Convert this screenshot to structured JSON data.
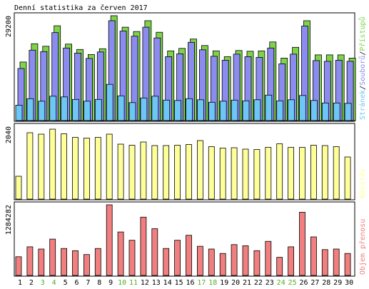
{
  "title": "Denní statistika za červen 2017",
  "colors": {
    "background": "#ffffff",
    "frame": "#000000",
    "pristupy": "#7ed34a",
    "soubory": "#8c8cf0",
    "stranky": "#6ec6f6",
    "navstevy": "#ffff99",
    "objem": "#f27f7f",
    "weekend": "#5aaa2a",
    "weekday": "#000000"
  },
  "chart_data": [
    {
      "type": "bar",
      "name": "hits",
      "ymax_label": "29200",
      "ylim": [
        0,
        29200
      ],
      "legend": [
        {
          "key": "stranky",
          "label": "Stránek"
        },
        {
          "key": "soubory",
          "label": "Souborů"
        },
        {
          "key": "pristupy",
          "label": "Přístupů"
        }
      ],
      "legend_sep": "/",
      "categories": [
        "1",
        "2",
        "3",
        "4",
        "5",
        "6",
        "7",
        "8",
        "9",
        "10",
        "11",
        "12",
        "13",
        "14",
        "15",
        "16",
        "17",
        "18",
        "19",
        "20",
        "21",
        "22",
        "23",
        "24",
        "25",
        "26",
        "27",
        "28",
        "29",
        "30"
      ],
      "series": [
        {
          "name": "Přístupů",
          "key": "pristupy",
          "values": [
            16300,
            21400,
            20700,
            26400,
            21300,
            19800,
            18400,
            20000,
            29200,
            26000,
            24800,
            27800,
            24600,
            19400,
            20100,
            22700,
            20900,
            19400,
            17800,
            19500,
            19300,
            19400,
            21900,
            17400,
            20400,
            27800,
            18300,
            18300,
            18300,
            17400
          ]
        },
        {
          "name": "Souborů",
          "key": "soubory",
          "values": [
            14500,
            19600,
            19200,
            24500,
            20200,
            18800,
            17300,
            19100,
            27800,
            24900,
            23500,
            26000,
            23000,
            17800,
            18600,
            21800,
            19700,
            17900,
            16800,
            18500,
            17800,
            17600,
            20200,
            15800,
            18500,
            26300,
            16700,
            16500,
            16800,
            16500
          ]
        },
        {
          "name": "Stránek",
          "key": "stranky",
          "values": [
            4300,
            6100,
            5400,
            6800,
            6600,
            5900,
            5400,
            5900,
            10100,
            6900,
            5000,
            6300,
            6800,
            5700,
            5600,
            6100,
            5800,
            5100,
            5400,
            5700,
            5500,
            5800,
            7100,
            5500,
            5800,
            7000,
            5600,
            4900,
            4900,
            4800
          ]
        }
      ]
    },
    {
      "type": "bar",
      "name": "visits",
      "ymax_label": "2040",
      "ylim": [
        0,
        2040
      ],
      "legend": [
        {
          "key": "navstevy",
          "label": "Návštěv"
        }
      ],
      "categories": [
        "1",
        "2",
        "3",
        "4",
        "5",
        "6",
        "7",
        "8",
        "9",
        "10",
        "11",
        "12",
        "13",
        "14",
        "15",
        "16",
        "17",
        "18",
        "19",
        "20",
        "21",
        "22",
        "23",
        "24",
        "25",
        "26",
        "27",
        "28",
        "29",
        "30"
      ],
      "series": [
        {
          "name": "Návštěv",
          "key": "navstevy",
          "values": [
            640,
            1860,
            1820,
            1960,
            1830,
            1730,
            1710,
            1730,
            1820,
            1540,
            1510,
            1600,
            1500,
            1500,
            1510,
            1530,
            1640,
            1470,
            1430,
            1440,
            1400,
            1390,
            1450,
            1550,
            1450,
            1450,
            1510,
            1500,
            1470,
            1180
          ]
        }
      ]
    },
    {
      "type": "bar",
      "name": "volume",
      "ymax_label": "1284282",
      "ylim": [
        0,
        1284282
      ],
      "legend": [
        {
          "key": "objem",
          "label": "Objem přenosu"
        }
      ],
      "categories": [
        "1",
        "2",
        "3",
        "4",
        "5",
        "6",
        "7",
        "8",
        "9",
        "10",
        "11",
        "12",
        "13",
        "14",
        "15",
        "16",
        "17",
        "18",
        "19",
        "20",
        "21",
        "22",
        "23",
        "24",
        "25",
        "26",
        "27",
        "28",
        "29",
        "30"
      ],
      "series": [
        {
          "name": "Objem přenosu",
          "key": "objem",
          "values": [
            340000,
            520000,
            480000,
            660000,
            490000,
            450000,
            380000,
            490000,
            1284282,
            790000,
            640000,
            1060000,
            850000,
            490000,
            640000,
            730000,
            530000,
            480000,
            400000,
            560000,
            540000,
            450000,
            620000,
            330000,
            520000,
            1150000,
            700000,
            470000,
            480000,
            400000
          ]
        }
      ]
    }
  ],
  "weekend_days": [
    "3",
    "4",
    "10",
    "11",
    "17",
    "18",
    "24",
    "25"
  ]
}
